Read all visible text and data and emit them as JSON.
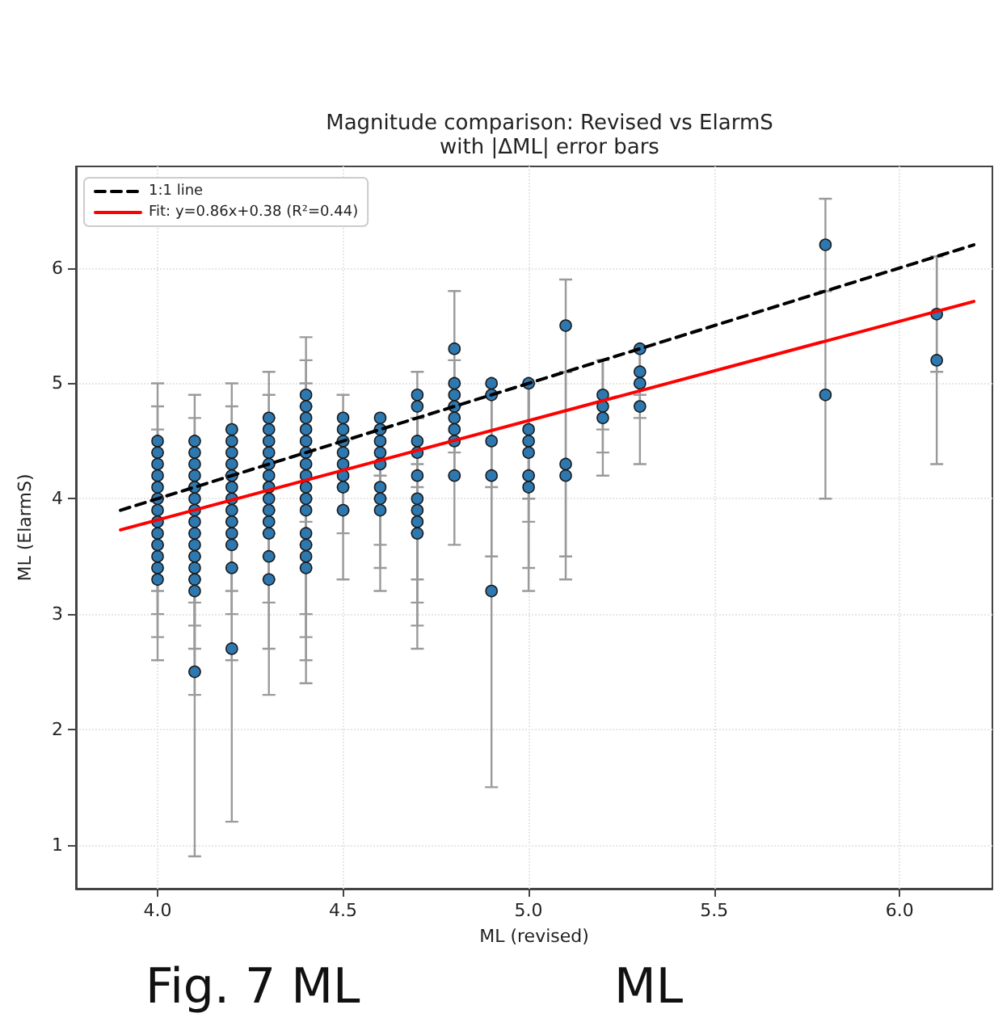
{
  "chart_data": {
    "type": "scatter",
    "title": "Magnitude comparison: Revised vs ElarmS\nwith |ΔML| error bars",
    "xlabel": "ML (revised)",
    "ylabel": "ML (ElarmS)",
    "xlim": [
      3.78,
      6.25
    ],
    "ylim": [
      0.62,
      6.88
    ],
    "xticks": [
      {
        "value": 4,
        "label": "4.0"
      },
      {
        "value": 4.5,
        "label": "4.5"
      },
      {
        "value": 5,
        "label": "5.0"
      },
      {
        "value": 5.5,
        "label": "5.5"
      },
      {
        "value": 6,
        "label": "6.0"
      }
    ],
    "yticks": [
      1,
      2,
      3,
      4,
      5,
      6
    ],
    "grid": true,
    "legend": "top left",
    "annotations": [
      "Fig. 7 ML",
      "ML"
    ],
    "series": [
      {
        "color": "#2e78b0",
        "marker": "circle",
        "x": [
          4.0,
          4.0,
          4.0,
          4.0,
          4.0,
          4.0,
          4.0,
          4.0,
          4.0,
          4.0,
          4.0,
          4.0,
          4.0,
          4.1,
          4.1,
          4.1,
          4.1,
          4.1,
          4.1,
          4.1,
          4.1,
          4.1,
          4.1,
          4.1,
          4.1,
          4.1,
          4.1,
          4.1,
          4.2,
          4.2,
          4.2,
          4.2,
          4.2,
          4.2,
          4.2,
          4.2,
          4.2,
          4.2,
          4.2,
          4.2,
          4.2,
          4.3,
          4.3,
          4.3,
          4.3,
          4.3,
          4.3,
          4.3,
          4.3,
          4.3,
          4.3,
          4.3,
          4.3,
          4.3,
          4.4,
          4.4,
          4.4,
          4.4,
          4.4,
          4.4,
          4.4,
          4.4,
          4.4,
          4.4,
          4.4,
          4.4,
          4.4,
          4.4,
          4.4,
          4.5,
          4.5,
          4.5,
          4.5,
          4.5,
          4.5,
          4.5,
          4.5,
          4.6,
          4.6,
          4.6,
          4.6,
          4.6,
          4.6,
          4.6,
          4.6,
          4.7,
          4.7,
          4.7,
          4.7,
          4.7,
          4.7,
          4.7,
          4.7,
          4.7,
          4.8,
          4.8,
          4.8,
          4.8,
          4.8,
          4.8,
          4.8,
          4.8,
          4.9,
          4.9,
          4.9,
          4.9,
          4.9,
          5.0,
          5.0,
          5.0,
          5.0,
          5.0,
          5.0,
          5.1,
          5.1,
          5.1,
          5.2,
          5.2,
          5.2,
          5.3,
          5.3,
          5.3,
          5.3,
          5.8,
          5.8,
          6.1,
          6.1
        ],
        "values": [
          4.5,
          4.4,
          4.3,
          4.2,
          4.1,
          4.0,
          3.9,
          3.8,
          3.7,
          3.6,
          3.5,
          3.4,
          3.3,
          4.5,
          4.4,
          4.3,
          4.2,
          4.1,
          4.0,
          3.9,
          3.8,
          3.7,
          3.6,
          3.5,
          3.4,
          3.3,
          3.2,
          2.5,
          4.6,
          4.5,
          4.4,
          4.3,
          4.2,
          4.1,
          4.0,
          3.9,
          3.8,
          3.7,
          3.6,
          3.4,
          2.7,
          4.7,
          4.6,
          4.5,
          4.4,
          4.3,
          4.2,
          4.1,
          4.0,
          3.9,
          3.8,
          3.7,
          3.5,
          3.3,
          4.9,
          4.8,
          4.7,
          4.6,
          4.5,
          4.4,
          4.3,
          4.2,
          4.1,
          4.0,
          3.9,
          3.7,
          3.6,
          3.5,
          3.4,
          4.7,
          4.6,
          4.5,
          4.4,
          4.3,
          4.2,
          4.1,
          3.9,
          4.7,
          4.6,
          4.5,
          4.4,
          4.3,
          4.1,
          4.0,
          3.9,
          4.9,
          4.8,
          4.5,
          4.4,
          4.2,
          4.0,
          3.9,
          3.8,
          3.7,
          5.3,
          5.0,
          4.9,
          4.8,
          4.7,
          4.6,
          4.5,
          4.2,
          5.0,
          4.9,
          4.5,
          4.2,
          3.2,
          5.0,
          4.6,
          4.5,
          4.4,
          4.2,
          4.1,
          5.5,
          4.3,
          4.2,
          4.9,
          4.8,
          4.7,
          5.3,
          5.1,
          5.0,
          4.8,
          6.2,
          4.9,
          5.6,
          5.2
        ],
        "errors": [
          0.5,
          0.4,
          0.3,
          0.2,
          null,
          0,
          null,
          0.2,
          0.3,
          0.4,
          0.5,
          0.6,
          0.7,
          0.4,
          0.3,
          0.2,
          null,
          0,
          null,
          0.2,
          0.3,
          0.4,
          0.5,
          0.6,
          0.7,
          0.8,
          0.9,
          1.6,
          0.4,
          0.3,
          0.2,
          null,
          0,
          null,
          0.2,
          0.3,
          0.4,
          0.5,
          0.6,
          0.8,
          1.5,
          0.4,
          0.3,
          0.2,
          null,
          0,
          null,
          0.2,
          0.3,
          0.4,
          0.5,
          0.6,
          0.8,
          1.0,
          0.5,
          0.4,
          0.3,
          0.2,
          null,
          0,
          null,
          0.2,
          0.3,
          0.4,
          0.5,
          0.7,
          0.8,
          0.9,
          1.0,
          0.2,
          null,
          0,
          null,
          0.2,
          0.3,
          0.4,
          0.6,
          null,
          0,
          null,
          0.2,
          0.3,
          0.5,
          0.6,
          0.7,
          0.2,
          null,
          0.2,
          0.3,
          0.5,
          0.7,
          0.8,
          0.9,
          1.0,
          0.5,
          0.2,
          null,
          0,
          null,
          0.2,
          0.3,
          0.6,
          null,
          0,
          0.4,
          0.7,
          1.7,
          0,
          0.4,
          0.5,
          0.6,
          0.8,
          0.9,
          0.4,
          0.8,
          0.9,
          0.3,
          0.4,
          0.5,
          0,
          0.2,
          0.3,
          0.5,
          0.4,
          0.9,
          0.5,
          0.9
        ]
      },
      {
        "type": "line",
        "name": "1:1 line",
        "color": "#000000",
        "line_style": "dashed",
        "marker": "none",
        "x": [
          3.9,
          6.2
        ],
        "values": [
          3.9,
          6.2
        ]
      },
      {
        "type": "line",
        "name": "Fit: y=0.86x+0.38 (R²=0.44)",
        "color": "#ff0000",
        "line_style": "solid",
        "marker": "none",
        "x": [
          3.9,
          6.2
        ],
        "values": [
          3.73,
          5.71
        ]
      }
    ]
  }
}
